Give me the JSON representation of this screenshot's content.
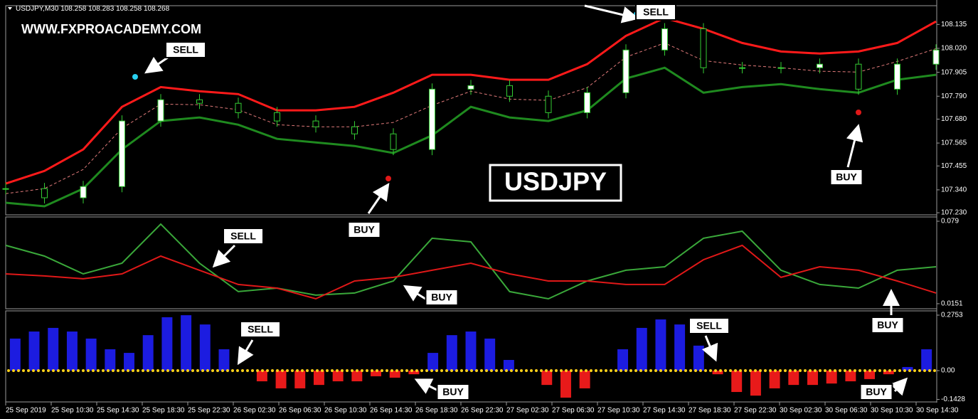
{
  "symbol": "USDJPY,M30",
  "ohlc": [
    108.258,
    108.283,
    108.258,
    108.268
  ],
  "watermark": "WWW.FXPROACADEMY.COM",
  "badge": "USDJPY",
  "annotations": [
    "SELL",
    "SELL",
    "BUY",
    "BUY",
    "SELL",
    "BUY",
    "BUY",
    "SELL",
    "SELL",
    "BUY",
    "BUY"
  ],
  "time_labels": [
    "25 Sep 2019",
    "25 Sep 10:30",
    "25 Sep 14:30",
    "25 Sep 18:30",
    "25 Sep 22:30",
    "26 Sep 02:30",
    "26 Sep 06:30",
    "26 Sep 10:30",
    "26 Sep 14:30",
    "26 Sep 18:30",
    "26 Sep 22:30",
    "27 Sep 02:30",
    "27 Sep 06:30",
    "27 Sep 10:30",
    "27 Sep 14:30",
    "27 Sep 18:30",
    "27 Sep 22:30",
    "30 Sep 02:30",
    "30 Sep 06:30",
    "30 Sep 10:30",
    "30 Sep 14:30"
  ],
  "chart_data": [
    {
      "type": "candlestick",
      "ylim": [
        107.22,
        108.225
      ],
      "yticks": [
        {
          "value": 107.23,
          "label": "107.230"
        },
        {
          "value": 107.34,
          "label": "107.340"
        },
        107.455,
        107.565,
        {
          "value": 107.68,
          "label": "107.680"
        },
        {
          "value": 107.79,
          "label": "107.790"
        },
        107.905,
        {
          "value": 108.02,
          "label": "108.020"
        },
        108.135
      ],
      "up_color": "#ffffff",
      "down_color": "#33cc33",
      "close": [
        107.346,
        107.302,
        107.356,
        107.671,
        107.773,
        107.756,
        107.711,
        107.671,
        107.643,
        107.609,
        107.534,
        107.824,
        107.841,
        107.79,
        107.711,
        107.807,
        108.012,
        108.114,
        107.927,
        107.927,
        107.927,
        107.944,
        107.824,
        107.944,
        108.012
      ],
      "series": [
        {
          "color": "#ff1a1a",
          "width": 3,
          "values": [
            107.37,
            107.431,
            107.534,
            107.739,
            107.834,
            107.814,
            107.8,
            107.722,
            107.722,
            107.739,
            107.807,
            107.893,
            107.893,
            107.869,
            107.869,
            107.944,
            108.08,
            108.166,
            108.114,
            108.046,
            108.005,
            107.995,
            108.005,
            108.046,
            108.149
          ]
        },
        {
          "color": "#e07a7a",
          "width": 1,
          "dashed": true,
          "values": [
            107.322,
            107.346,
            107.438,
            107.636,
            107.752,
            107.749,
            107.725,
            107.653,
            107.643,
            107.643,
            107.664,
            107.746,
            107.814,
            107.776,
            107.77,
            107.831,
            107.978,
            108.046,
            107.961,
            107.94,
            107.927,
            107.91,
            107.906,
            107.957,
            108.019
          ]
        },
        {
          "color": "#1f8a1f",
          "width": 3,
          "values": [
            107.278,
            107.261,
            107.346,
            107.534,
            107.671,
            107.688,
            107.653,
            107.585,
            107.568,
            107.551,
            107.517,
            107.602,
            107.739,
            107.688,
            107.671,
            107.722,
            107.875,
            107.927,
            107.807,
            107.834,
            107.848,
            107.824,
            107.807,
            107.869,
            107.893
          ]
        }
      ]
    },
    {
      "type": "line",
      "ylim": [
        0.0112,
        0.0823
      ],
      "yticks": [
        0.0151,
        0.079
      ],
      "series": [
        {
          "color": "#3aa83a",
          "width": 2,
          "values": [
            0.0603,
            0.052,
            0.0382,
            0.0465,
            0.0768,
            0.0465,
            0.0245,
            0.0272,
            0.0217,
            0.0234,
            0.0327,
            0.0658,
            0.063,
            0.0245,
            0.0189,
            0.0327,
            0.041,
            0.0437,
            0.0658,
            0.0713,
            0.041,
            0.03,
            0.0272,
            0.041,
            0.0437
          ]
        },
        {
          "color": "#e01818",
          "width": 2,
          "values": [
            0.0382,
            0.0366,
            0.0344,
            0.0382,
            0.052,
            0.041,
            0.03,
            0.0272,
            0.0189,
            0.0327,
            0.0355,
            0.041,
            0.0465,
            0.0382,
            0.0327,
            0.0327,
            0.03,
            0.03,
            0.0492,
            0.0603,
            0.0355,
            0.0437,
            0.041,
            0.0327,
            0.0234
          ]
        }
      ]
    },
    {
      "type": "bar",
      "ylim": [
        -0.1553,
        0.2965
      ],
      "yticks": [
        -0.1428,
        {
          "value": 0,
          "label": "0.00"
        },
        0.2753
      ],
      "up_color": "#1c1ce0",
      "down_color": "#e81a1a",
      "zero_color": "#ffd21a",
      "values": [
        0.159,
        0.194,
        0.212,
        0.194,
        0.159,
        0.106,
        0.088,
        0.176,
        0.265,
        0.275,
        0.229,
        0.106,
        0,
        -0.053,
        -0.088,
        -0.088,
        -0.071,
        -0.053,
        -0.053,
        -0.028,
        -0.035,
        -0.018,
        0.088,
        0.176,
        0.194,
        0.159,
        0.053,
        0,
        -0.071,
        -0.134,
        -0.088,
        0,
        0.106,
        0.212,
        0.254,
        0.229,
        0.124,
        -0.018,
        -0.106,
        -0.124,
        -0.088,
        -0.071,
        -0.071,
        -0.064,
        -0.053,
        -0.042,
        -0.018,
        0.018,
        0.106
      ]
    }
  ]
}
